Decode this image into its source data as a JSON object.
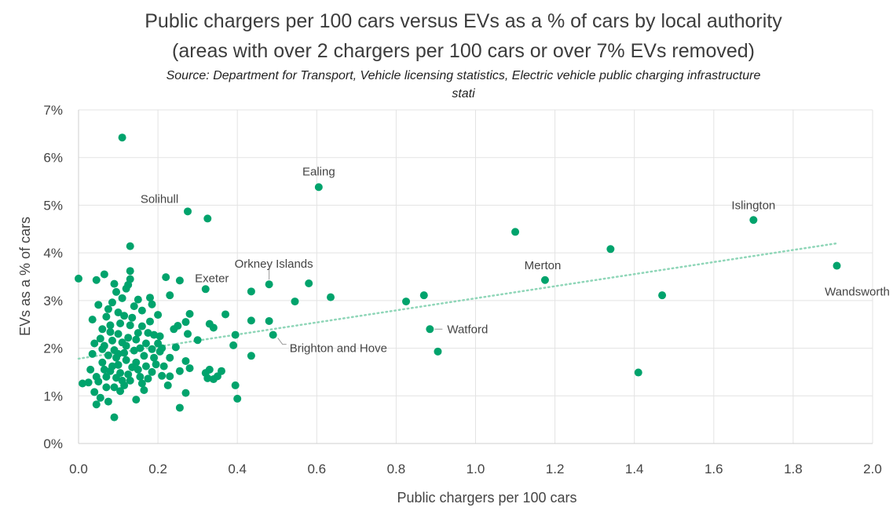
{
  "chart_data": {
    "type": "scatter",
    "title_line1": "Public chargers per 100 cars versus EVs as a % of cars by local authority",
    "title_line2": "(areas with over 2 chargers per 100 cars or over 7% EVs removed)",
    "subtitle_line1": "Source: Department for Transport, Vehicle licensing statistics, Electric vehicle public charging infrastructure",
    "subtitle_line2": "stati",
    "xlabel": "Public chargers per 100 cars",
    "ylabel": "EVs as a % of cars",
    "xlim": [
      0,
      2
    ],
    "ylim": [
      0,
      7
    ],
    "x_ticks": [
      "0.0",
      "0.2",
      "0.4",
      "0.6",
      "0.8",
      "1.0",
      "1.2",
      "1.4",
      "1.6",
      "1.8",
      "2.0"
    ],
    "y_ticks": [
      "0%",
      "1%",
      "2%",
      "3%",
      "4%",
      "5%",
      "6%",
      "7%"
    ],
    "grid": true,
    "marker_color": "#00a36c",
    "trendline_color": "#8fd6b8",
    "trendline": {
      "x": [
        0.0,
        1.91
      ],
      "y": [
        1.78,
        4.2
      ]
    },
    "points": [
      {
        "x": 0.11,
        "y": 6.42
      },
      {
        "x": 0.605,
        "y": 5.38
      },
      {
        "x": 0.275,
        "y": 4.87
      },
      {
        "x": 0.325,
        "y": 4.72
      },
      {
        "x": 1.7,
        "y": 4.69
      },
      {
        "x": 1.1,
        "y": 4.44
      },
      {
        "x": 1.34,
        "y": 4.08
      },
      {
        "x": 0.13,
        "y": 4.14
      },
      {
        "x": 1.91,
        "y": 3.73
      },
      {
        "x": 1.175,
        "y": 3.43
      },
      {
        "x": 1.47,
        "y": 3.11
      },
      {
        "x": 0.87,
        "y": 3.11
      },
      {
        "x": 0.825,
        "y": 2.98
      },
      {
        "x": 0.885,
        "y": 2.4
      },
      {
        "x": 0.905,
        "y": 1.93
      },
      {
        "x": 1.41,
        "y": 1.49
      },
      {
        "x": 0.48,
        "y": 3.34
      },
      {
        "x": 0.58,
        "y": 3.36
      },
      {
        "x": 0.635,
        "y": 3.07
      },
      {
        "x": 0.545,
        "y": 2.98
      },
      {
        "x": 0.435,
        "y": 3.19
      },
      {
        "x": 0.48,
        "y": 2.57
      },
      {
        "x": 0.49,
        "y": 2.28
      },
      {
        "x": 0.435,
        "y": 2.58
      },
      {
        "x": 0.435,
        "y": 1.84
      },
      {
        "x": 0.39,
        "y": 2.06
      },
      {
        "x": 0.395,
        "y": 2.28
      },
      {
        "x": 0.395,
        "y": 1.22
      },
      {
        "x": 0.4,
        "y": 0.94
      },
      {
        "x": 0.37,
        "y": 2.71
      },
      {
        "x": 0.32,
        "y": 3.24
      },
      {
        "x": 0.33,
        "y": 2.51
      },
      {
        "x": 0.34,
        "y": 2.43
      },
      {
        "x": 0.3,
        "y": 2.17
      },
      {
        "x": 0.32,
        "y": 1.48
      },
      {
        "x": 0.33,
        "y": 1.55
      },
      {
        "x": 0.35,
        "y": 1.41
      },
      {
        "x": 0.36,
        "y": 1.52
      },
      {
        "x": 0.325,
        "y": 1.37
      },
      {
        "x": 0.34,
        "y": 1.35
      },
      {
        "x": 0.27,
        "y": 1.06
      },
      {
        "x": 0.255,
        "y": 0.75
      },
      {
        "x": 0.0,
        "y": 3.46
      },
      {
        "x": 0.045,
        "y": 3.43
      },
      {
        "x": 0.065,
        "y": 3.55
      },
      {
        "x": 0.01,
        "y": 1.26
      },
      {
        "x": 0.025,
        "y": 1.28
      },
      {
        "x": 0.045,
        "y": 0.82
      },
      {
        "x": 0.09,
        "y": 0.55
      },
      {
        "x": 0.22,
        "y": 3.49
      },
      {
        "x": 0.255,
        "y": 3.42
      },
      {
        "x": 0.23,
        "y": 3.11
      },
      {
        "x": 0.18,
        "y": 3.06
      },
      {
        "x": 0.15,
        "y": 3.02
      },
      {
        "x": 0.13,
        "y": 3.62
      },
      {
        "x": 0.13,
        "y": 3.45
      },
      {
        "x": 0.12,
        "y": 3.25
      },
      {
        "x": 0.125,
        "y": 3.33
      },
      {
        "x": 0.185,
        "y": 2.92
      },
      {
        "x": 0.16,
        "y": 2.79
      },
      {
        "x": 0.2,
        "y": 2.7
      },
      {
        "x": 0.24,
        "y": 2.4
      },
      {
        "x": 0.25,
        "y": 2.47
      },
      {
        "x": 0.27,
        "y": 2.55
      },
      {
        "x": 0.28,
        "y": 2.72
      },
      {
        "x": 0.275,
        "y": 2.3
      },
      {
        "x": 0.245,
        "y": 2.02
      },
      {
        "x": 0.27,
        "y": 1.73
      },
      {
        "x": 0.28,
        "y": 1.58
      },
      {
        "x": 0.255,
        "y": 1.52
      },
      {
        "x": 0.23,
        "y": 1.41
      },
      {
        "x": 0.225,
        "y": 1.22
      },
      {
        "x": 0.205,
        "y": 2.25
      },
      {
        "x": 0.205,
        "y": 1.93
      },
      {
        "x": 0.215,
        "y": 1.62
      },
      {
        "x": 0.21,
        "y": 1.42
      },
      {
        "x": 0.03,
        "y": 1.55
      },
      {
        "x": 0.035,
        "y": 1.88
      },
      {
        "x": 0.04,
        "y": 2.1
      },
      {
        "x": 0.035,
        "y": 2.6
      },
      {
        "x": 0.05,
        "y": 2.91
      },
      {
        "x": 0.06,
        "y": 2.4
      },
      {
        "x": 0.065,
        "y": 2.05
      },
      {
        "x": 0.045,
        "y": 1.4
      },
      {
        "x": 0.04,
        "y": 1.08
      },
      {
        "x": 0.055,
        "y": 0.96
      },
      {
        "x": 0.05,
        "y": 1.3
      },
      {
        "x": 0.06,
        "y": 1.7
      },
      {
        "x": 0.07,
        "y": 1.18
      },
      {
        "x": 0.075,
        "y": 0.88
      },
      {
        "x": 0.08,
        "y": 1.52
      },
      {
        "x": 0.085,
        "y": 2.96
      },
      {
        "x": 0.09,
        "y": 3.35
      },
      {
        "x": 0.095,
        "y": 3.18
      },
      {
        "x": 0.1,
        "y": 2.75
      },
      {
        "x": 0.105,
        "y": 2.52
      },
      {
        "x": 0.11,
        "y": 3.05
      },
      {
        "x": 0.07,
        "y": 2.66
      },
      {
        "x": 0.075,
        "y": 2.82
      },
      {
        "x": 0.08,
        "y": 2.34
      },
      {
        "x": 0.085,
        "y": 2.16
      },
      {
        "x": 0.09,
        "y": 1.96
      },
      {
        "x": 0.095,
        "y": 1.8
      },
      {
        "x": 0.1,
        "y": 1.65
      },
      {
        "x": 0.105,
        "y": 1.48
      },
      {
        "x": 0.11,
        "y": 1.32
      },
      {
        "x": 0.115,
        "y": 1.9
      },
      {
        "x": 0.12,
        "y": 2.05
      },
      {
        "x": 0.125,
        "y": 2.22
      },
      {
        "x": 0.13,
        "y": 2.48
      },
      {
        "x": 0.135,
        "y": 2.64
      },
      {
        "x": 0.14,
        "y": 2.88
      },
      {
        "x": 0.145,
        "y": 1.7
      },
      {
        "x": 0.15,
        "y": 1.55
      },
      {
        "x": 0.155,
        "y": 1.4
      },
      {
        "x": 0.16,
        "y": 1.26
      },
      {
        "x": 0.165,
        "y": 1.12
      },
      {
        "x": 0.145,
        "y": 0.92
      },
      {
        "x": 0.17,
        "y": 2.1
      },
      {
        "x": 0.175,
        "y": 2.32
      },
      {
        "x": 0.18,
        "y": 2.56
      },
      {
        "x": 0.185,
        "y": 1.98
      },
      {
        "x": 0.19,
        "y": 1.8
      },
      {
        "x": 0.195,
        "y": 1.66
      },
      {
        "x": 0.2,
        "y": 2.1
      },
      {
        "x": 0.185,
        "y": 1.5
      },
      {
        "x": 0.175,
        "y": 1.36
      },
      {
        "x": 0.165,
        "y": 1.84
      },
      {
        "x": 0.155,
        "y": 2.0
      },
      {
        "x": 0.145,
        "y": 2.18
      },
      {
        "x": 0.135,
        "y": 1.6
      },
      {
        "x": 0.125,
        "y": 1.45
      },
      {
        "x": 0.115,
        "y": 1.22
      },
      {
        "x": 0.105,
        "y": 1.1
      },
      {
        "x": 0.095,
        "y": 1.38
      },
      {
        "x": 0.085,
        "y": 1.62
      },
      {
        "x": 0.075,
        "y": 1.85
      },
      {
        "x": 0.065,
        "y": 1.55
      },
      {
        "x": 0.055,
        "y": 2.2
      },
      {
        "x": 0.115,
        "y": 2.68
      },
      {
        "x": 0.16,
        "y": 2.46
      },
      {
        "x": 0.19,
        "y": 2.28
      },
      {
        "x": 0.21,
        "y": 2.0
      },
      {
        "x": 0.23,
        "y": 1.8
      },
      {
        "x": 0.14,
        "y": 1.95
      },
      {
        "x": 0.1,
        "y": 2.3
      },
      {
        "x": 0.08,
        "y": 2.48
      },
      {
        "x": 0.06,
        "y": 1.98
      },
      {
        "x": 0.12,
        "y": 1.75
      },
      {
        "x": 0.17,
        "y": 1.62
      },
      {
        "x": 0.13,
        "y": 1.32
      },
      {
        "x": 0.09,
        "y": 1.18
      },
      {
        "x": 0.15,
        "y": 2.32
      },
      {
        "x": 0.11,
        "y": 2.12
      },
      {
        "x": 0.07,
        "y": 1.4
      },
      {
        "x": 0.1,
        "y": 1.88
      }
    ],
    "annotations": [
      {
        "label": "Ealing",
        "x": 0.605,
        "y": 5.38
      },
      {
        "label": "Solihull",
        "x": 0.275,
        "y": 4.87
      },
      {
        "label": "Islington",
        "x": 1.7,
        "y": 4.69
      },
      {
        "label": "Orkney Islands",
        "x": 0.48,
        "y": 3.34
      },
      {
        "label": "Exeter",
        "x": 0.32,
        "y": 3.24
      },
      {
        "label": "Merton",
        "x": 1.175,
        "y": 3.43
      },
      {
        "label": "Wandsworth",
        "x": 1.91,
        "y": 3.73
      },
      {
        "label": "Watford",
        "x": 0.885,
        "y": 2.4
      },
      {
        "label": "Brighton and Hove",
        "x": 0.49,
        "y": 2.28
      }
    ]
  }
}
